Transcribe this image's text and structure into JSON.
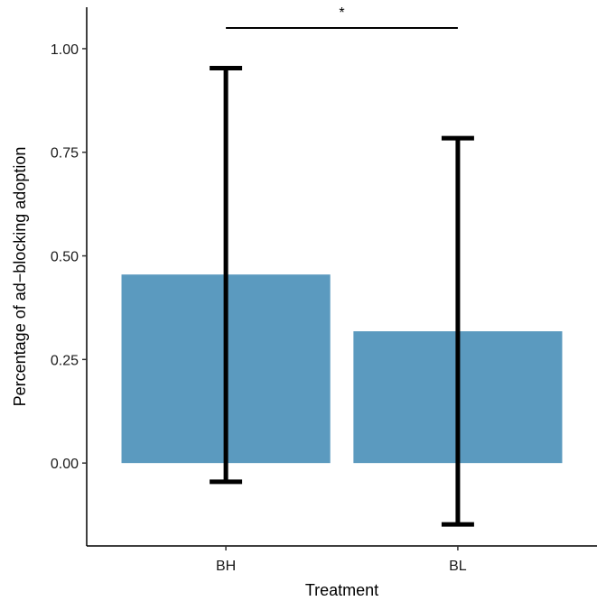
{
  "chart_data": {
    "type": "bar",
    "title": "",
    "xlabel": "Treatment",
    "ylabel": "Percentage of ad−blocking adoption",
    "categories": [
      "BH",
      "BL"
    ],
    "values": [
      0.455,
      0.318
    ],
    "error_bars": [
      {
        "category": "BH",
        "low": -0.045,
        "high": 0.953
      },
      {
        "category": "BL",
        "low": -0.148,
        "high": 0.784
      }
    ],
    "ylim": [
      -0.2,
      1.1
    ],
    "yticks": [
      "0.00",
      "0.25",
      "0.50",
      "0.75",
      "1.00"
    ],
    "ytick_values": [
      0,
      0.25,
      0.5,
      0.75,
      1.0
    ],
    "significance": {
      "between": [
        "BH",
        "BL"
      ],
      "y": 1.05,
      "label": "*"
    },
    "grid": false,
    "bar_color": "#5b9abf",
    "errorbar_color": "#000000"
  }
}
